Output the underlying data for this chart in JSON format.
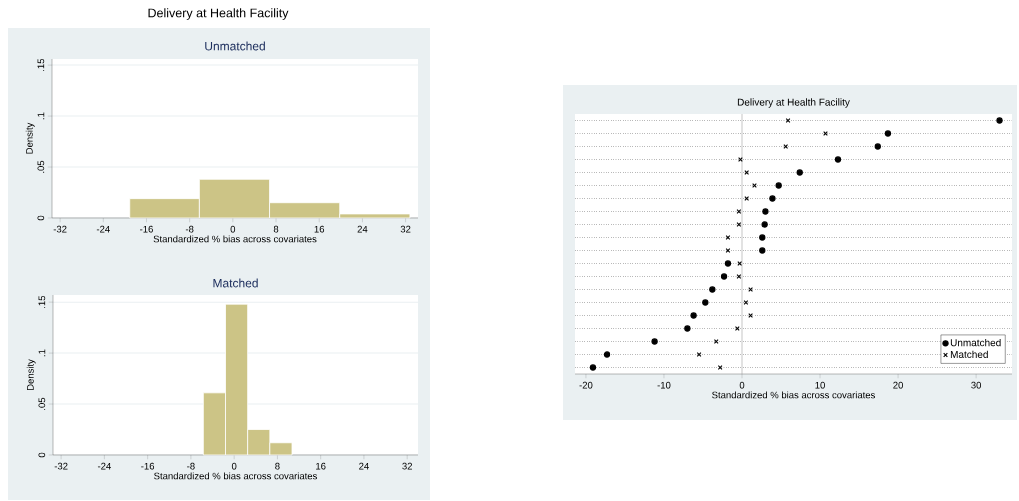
{
  "chart_data": [
    {
      "type": "histogram",
      "title": "Delivery at Health Facility",
      "subtitle": "Unmatched",
      "xlabel": "Standardized % bias across covariates",
      "ylabel": "Density",
      "color": "#ccc486",
      "bins": [
        -19.1,
        -6.2,
        6.8,
        19.8,
        32.8
      ],
      "values": [
        0.019,
        0.038,
        0.015,
        0.004
      ],
      "xlim": [
        -33.5,
        34.3
      ],
      "ylim": [
        0,
        0.156
      ],
      "xticks": [
        -32,
        -24,
        -16,
        -8,
        0,
        8,
        16,
        24,
        32
      ],
      "yticks": [
        0,
        {
          "value": 0.05,
          "label": ".05"
        },
        {
          "value": 0.1,
          "label": ".1"
        },
        {
          "value": 0.15,
          "label": ".15"
        }
      ],
      "grid": "y"
    },
    {
      "type": "histogram",
      "title": "Matched",
      "xlabel": "Standardized % bias across covariates",
      "ylabel": "Density",
      "color": "#ccc486",
      "bins": [
        -5.7,
        -1.6,
        2.5,
        6.6,
        10.7
      ],
      "values": [
        0.061,
        0.148,
        0.025,
        0.012
      ],
      "xlim": [
        -33.5,
        34.0
      ],
      "ylim": [
        0,
        0.157
      ],
      "xticks": [
        -32,
        -24,
        -16,
        -8,
        0,
        8,
        16,
        24,
        32
      ],
      "yticks": [
        0,
        {
          "value": 0.05,
          "label": ".05"
        },
        {
          "value": 0.1,
          "label": ".1"
        },
        {
          "value": 0.15,
          "label": ".15"
        }
      ],
      "grid": "y"
    },
    {
      "type": "scatter",
      "orientation": "horizontal",
      "title": "Delivery at Health Facility",
      "xlabel": "Standardized % bias across covariates",
      "categories": [
        null,
        null,
        null,
        null,
        null,
        null,
        null,
        null,
        null,
        null,
        null,
        null,
        null,
        null,
        null,
        null,
        null,
        null,
        null,
        null
      ],
      "series": [
        {
          "name": "Unmatched",
          "color": "#000000",
          "marker": "circle",
          "values": [
            33.0,
            18.7,
            17.4,
            12.3,
            7.4,
            4.7,
            3.9,
            3.0,
            2.9,
            2.6,
            2.6,
            -1.8,
            -2.3,
            -3.8,
            -4.7,
            -6.2,
            -7.0,
            -11.2,
            -17.3,
            -19.1
          ]
        },
        {
          "name": "Matched",
          "color": "#000000",
          "marker": "cross",
          "values": [
            5.9,
            10.7,
            5.6,
            -0.2,
            0.6,
            1.6,
            0.6,
            -0.4,
            -0.4,
            -1.8,
            -1.8,
            -0.3,
            -0.4,
            1.1,
            0.5,
            1.1,
            -0.6,
            -3.3,
            -5.5,
            -2.8
          ]
        }
      ],
      "xlim": [
        -21.4,
        34.6
      ],
      "xticks": [
        -20,
        -10,
        0,
        10,
        20,
        30
      ],
      "grid": "y",
      "legend": "bottom right",
      "ref_lines": [
        {
          "axis": "x",
          "value": 0,
          "color": "#a0a0a0"
        }
      ]
    }
  ]
}
